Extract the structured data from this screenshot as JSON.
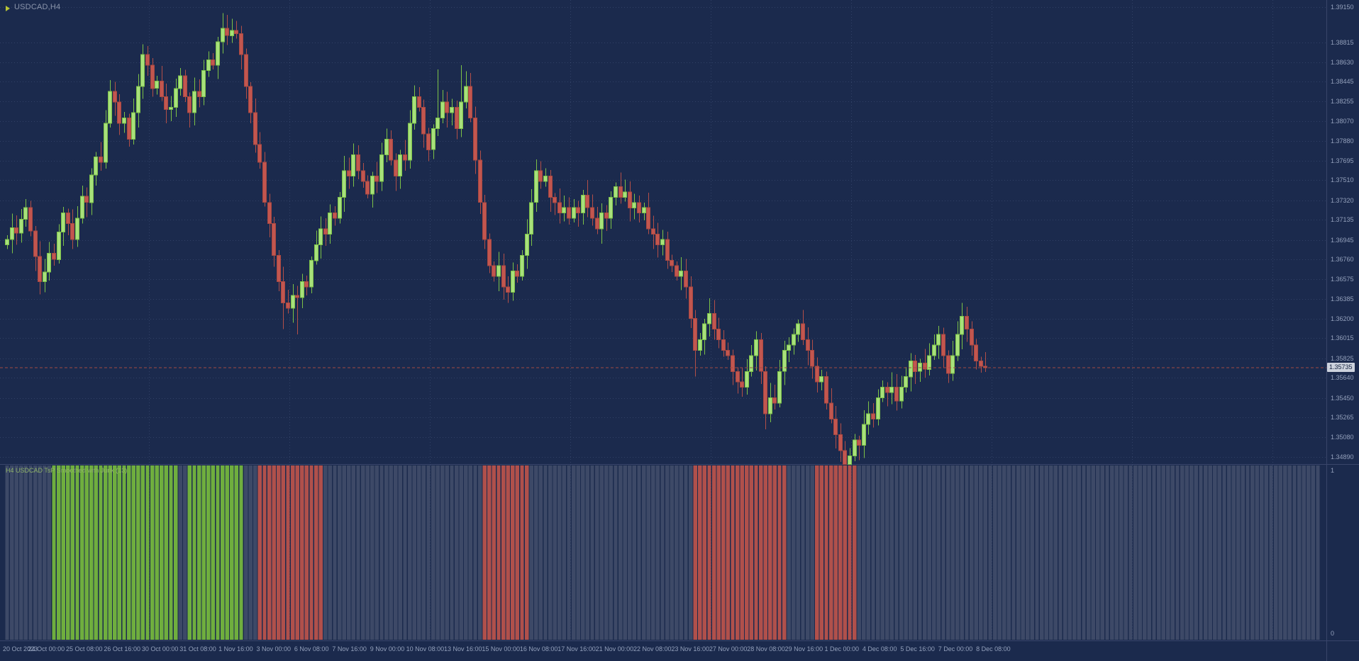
{
  "window": {
    "symbol_label": "USDCAD,H4"
  },
  "colors": {
    "background": "#1b2a4d",
    "bull": "#a8e07c",
    "bear": "#c2564f",
    "indicator_up": "#6fae3e",
    "indicator_down": "#b0504b",
    "indicator_neutral": "#4a5470",
    "axis_text": "#93a0bb",
    "bid_line": "#a14b44",
    "badge_bg": "#ccd2dd"
  },
  "price_axis": {
    "current_price": "1.35735",
    "ticks": [
      "1.39150",
      "1.38815",
      "1.38630",
      "1.38445",
      "1.38255",
      "1.38070",
      "1.37880",
      "1.37695",
      "1.37510",
      "1.37320",
      "1.37135",
      "1.36945",
      "1.36760",
      "1.36575",
      "1.36385",
      "1.36200",
      "1.36015",
      "1.35825",
      "1.35640",
      "1.35450",
      "1.35265",
      "1.35080",
      "1.34890"
    ]
  },
  "time_axis": {
    "labels": [
      "20 Oct 2023",
      "24 Oct 00:00",
      "25 Oct 08:00",
      "26 Oct 16:00",
      "30 Oct 00:00",
      "31 Oct 08:00",
      "1 Nov 16:00",
      "3 Nov 00:00",
      "6 Nov 08:00",
      "7 Nov 16:00",
      "9 Nov 00:00",
      "10 Nov 08:00",
      "13 Nov 16:00",
      "15 Nov 00:00",
      "16 Nov 08:00",
      "17 Nov 16:00",
      "21 Nov 00:00",
      "22 Nov 08:00",
      "23 Nov 16:00",
      "27 Nov 00:00",
      "28 Nov 08:00",
      "29 Nov 16:00",
      "1 Dec 00:00",
      "4 Dec 08:00",
      "5 Dec 16:00",
      "7 Dec 00:00",
      "8 Dec 08:00"
    ]
  },
  "indicator": {
    "label": "H4 USDCAD TsP Smoothed with Jurik (13)",
    "scale_top": "1",
    "scale_bottom": "0",
    "segments": [
      {
        "from": 0,
        "to": 9,
        "state": "neutral"
      },
      {
        "from": 10,
        "to": 36,
        "state": "up"
      },
      {
        "from": 37,
        "to": 38,
        "state": "neutral"
      },
      {
        "from": 39,
        "to": 50,
        "state": "up"
      },
      {
        "from": 51,
        "to": 53,
        "state": "neutral"
      },
      {
        "from": 54,
        "to": 67,
        "state": "down"
      },
      {
        "from": 68,
        "to": 101,
        "state": "neutral"
      },
      {
        "from": 102,
        "to": 111,
        "state": "down"
      },
      {
        "from": 112,
        "to": 146,
        "state": "neutral"
      },
      {
        "from": 147,
        "to": 166,
        "state": "down"
      },
      {
        "from": 167,
        "to": 172,
        "state": "neutral"
      },
      {
        "from": 173,
        "to": 181,
        "state": "down"
      },
      {
        "from": 182,
        "to": 209,
        "state": "neutral"
      }
    ]
  },
  "chart_data": {
    "type": "candlestick",
    "symbol": "USDCAD",
    "timeframe": "H4",
    "ylim": [
      1.3489,
      1.3915
    ],
    "x_span": [
      "20 Oct 2023",
      "8 Dec 08:00"
    ],
    "first_open": 1.369,
    "last_close": 1.35735,
    "closes": [
      1.3695,
      1.3706,
      1.3701,
      1.3714,
      1.3725,
      1.3703,
      1.3679,
      1.3655,
      1.3664,
      1.3682,
      1.3676,
      1.3702,
      1.372,
      1.371,
      1.3695,
      1.3715,
      1.3736,
      1.373,
      1.3756,
      1.3773,
      1.3768,
      1.3805,
      1.3835,
      1.3825,
      1.3805,
      1.381,
      1.379,
      1.3815,
      1.384,
      1.387,
      1.386,
      1.3838,
      1.3845,
      1.383,
      1.3818,
      1.382,
      1.3838,
      1.385,
      1.383,
      1.3815,
      1.3835,
      1.383,
      1.3855,
      1.3865,
      1.386,
      1.3882,
      1.3895,
      1.3888,
      1.3893,
      1.389,
      1.387,
      1.384,
      1.3815,
      1.3785,
      1.3768,
      1.373,
      1.371,
      1.368,
      1.3655,
      1.3635,
      1.363,
      1.3642,
      1.364,
      1.3655,
      1.365,
      1.3675,
      1.369,
      1.3705,
      1.37,
      1.372,
      1.3715,
      1.3735,
      1.376,
      1.3755,
      1.3775,
      1.376,
      1.375,
      1.3738,
      1.3755,
      1.375,
      1.3775,
      1.379,
      1.377,
      1.3755,
      1.3775,
      1.377,
      1.3805,
      1.383,
      1.382,
      1.3795,
      1.378,
      1.38,
      1.381,
      1.3825,
      1.3815,
      1.382,
      1.38,
      1.3825,
      1.384,
      1.381,
      1.377,
      1.373,
      1.3695,
      1.367,
      1.366,
      1.367,
      1.365,
      1.3645,
      1.3665,
      1.366,
      1.368,
      1.37,
      1.373,
      1.376,
      1.375,
      1.3755,
      1.3735,
      1.373,
      1.372,
      1.3725,
      1.3715,
      1.3725,
      1.372,
      1.3737,
      1.3725,
      1.3715,
      1.3705,
      1.372,
      1.3715,
      1.3735,
      1.3745,
      1.3735,
      1.374,
      1.3725,
      1.373,
      1.372,
      1.3725,
      1.3705,
      1.37,
      1.369,
      1.3695,
      1.3675,
      1.367,
      1.366,
      1.3665,
      1.365,
      1.362,
      1.359,
      1.36,
      1.3615,
      1.3625,
      1.361,
      1.36,
      1.359,
      1.3585,
      1.357,
      1.356,
      1.3555,
      1.357,
      1.3585,
      1.36,
      1.357,
      1.353,
      1.3545,
      1.354,
      1.357,
      1.359,
      1.3595,
      1.3605,
      1.3615,
      1.36,
      1.359,
      1.3575,
      1.356,
      1.3565,
      1.354,
      1.3525,
      1.351,
      1.3495,
      1.3482,
      1.349,
      1.3505,
      1.35,
      1.352,
      1.353,
      1.3525,
      1.3545,
      1.3555,
      1.355,
      1.3555,
      1.3542,
      1.3555,
      1.3565,
      1.358,
      1.357,
      1.3578,
      1.3572,
      1.3585,
      1.3595,
      1.3605,
      1.3585,
      1.3568,
      1.3585,
      1.3605,
      1.3622,
      1.361,
      1.3595,
      1.358,
      1.3575,
      1.35735
    ],
    "wick_spikes": {
      "46": {
        "high": 1.3905
      },
      "59": {
        "low": 1.361
      },
      "62": {
        "low": 1.3605
      },
      "92": {
        "high": 1.3856
      },
      "97": {
        "high": 1.386
      },
      "147": {
        "low": 1.3565
      },
      "162": {
        "low": 1.3515
      },
      "179": {
        "low": 1.3481
      },
      "204": {
        "high": 1.3635
      }
    }
  }
}
